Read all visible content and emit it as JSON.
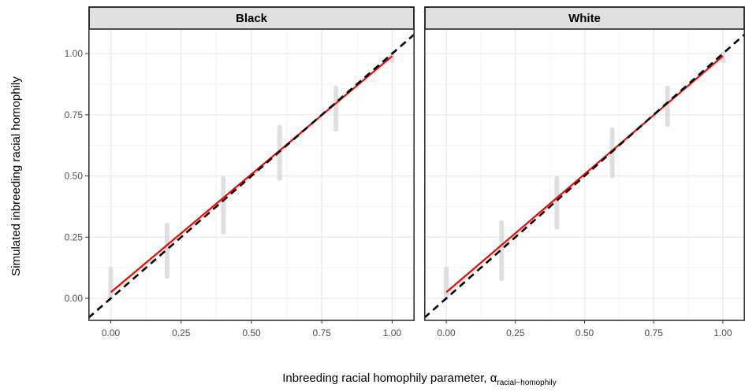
{
  "chart_data": {
    "type": "scatter",
    "ylabel": "Simulated inbreeding racial homophily",
    "xlabel": {
      "text": "Inbreeding racial homophily parameter, ",
      "symbol": "α",
      "subscript": "racial−homophily"
    },
    "xlim": [
      -0.08,
      1.08
    ],
    "ylim": [
      -0.09,
      1.1
    ],
    "x_ticks": [
      0.0,
      0.25,
      0.5,
      0.75,
      1.0
    ],
    "x_tick_labels": [
      "0.00",
      "0.25",
      "0.50",
      "0.75",
      "1.00"
    ],
    "y_ticks": [
      0.0,
      0.25,
      0.5,
      0.75,
      1.0
    ],
    "y_tick_labels": [
      "0.00",
      "0.25",
      "0.50",
      "0.75",
      "1.00"
    ],
    "reference_line": {
      "style": "dashed",
      "color": "#000000",
      "slope": 1,
      "intercept": 0
    },
    "fit_line_color": "#ff0000",
    "point_color": "#d9d9d9",
    "panels": [
      {
        "strip": "Black",
        "point_ranges": [
          {
            "x": 0.0,
            "ymin": 0.0,
            "ymax": 0.12
          },
          {
            "x": 0.2,
            "ymin": 0.09,
            "ymax": 0.3
          },
          {
            "x": 0.4,
            "ymin": 0.27,
            "ymax": 0.49
          },
          {
            "x": 0.6,
            "ymin": 0.49,
            "ymax": 0.7
          },
          {
            "x": 0.8,
            "ymin": 0.69,
            "ymax": 0.86
          },
          {
            "x": 1.0,
            "ymin": 0.97,
            "ymax": 1.0
          }
        ],
        "fit_line": {
          "x": [
            0.0,
            1.0
          ],
          "y": [
            0.025,
            0.99
          ]
        }
      },
      {
        "strip": "White",
        "point_ranges": [
          {
            "x": 0.0,
            "ymin": 0.0,
            "ymax": 0.12
          },
          {
            "x": 0.2,
            "ymin": 0.08,
            "ymax": 0.31
          },
          {
            "x": 0.4,
            "ymin": 0.29,
            "ymax": 0.49
          },
          {
            "x": 0.6,
            "ymin": 0.5,
            "ymax": 0.69
          },
          {
            "x": 0.8,
            "ymin": 0.71,
            "ymax": 0.86
          },
          {
            "x": 1.0,
            "ymin": 0.97,
            "ymax": 1.0
          }
        ],
        "fit_line": {
          "x": [
            0.0,
            1.0
          ],
          "y": [
            0.025,
            0.99
          ]
        }
      }
    ]
  }
}
